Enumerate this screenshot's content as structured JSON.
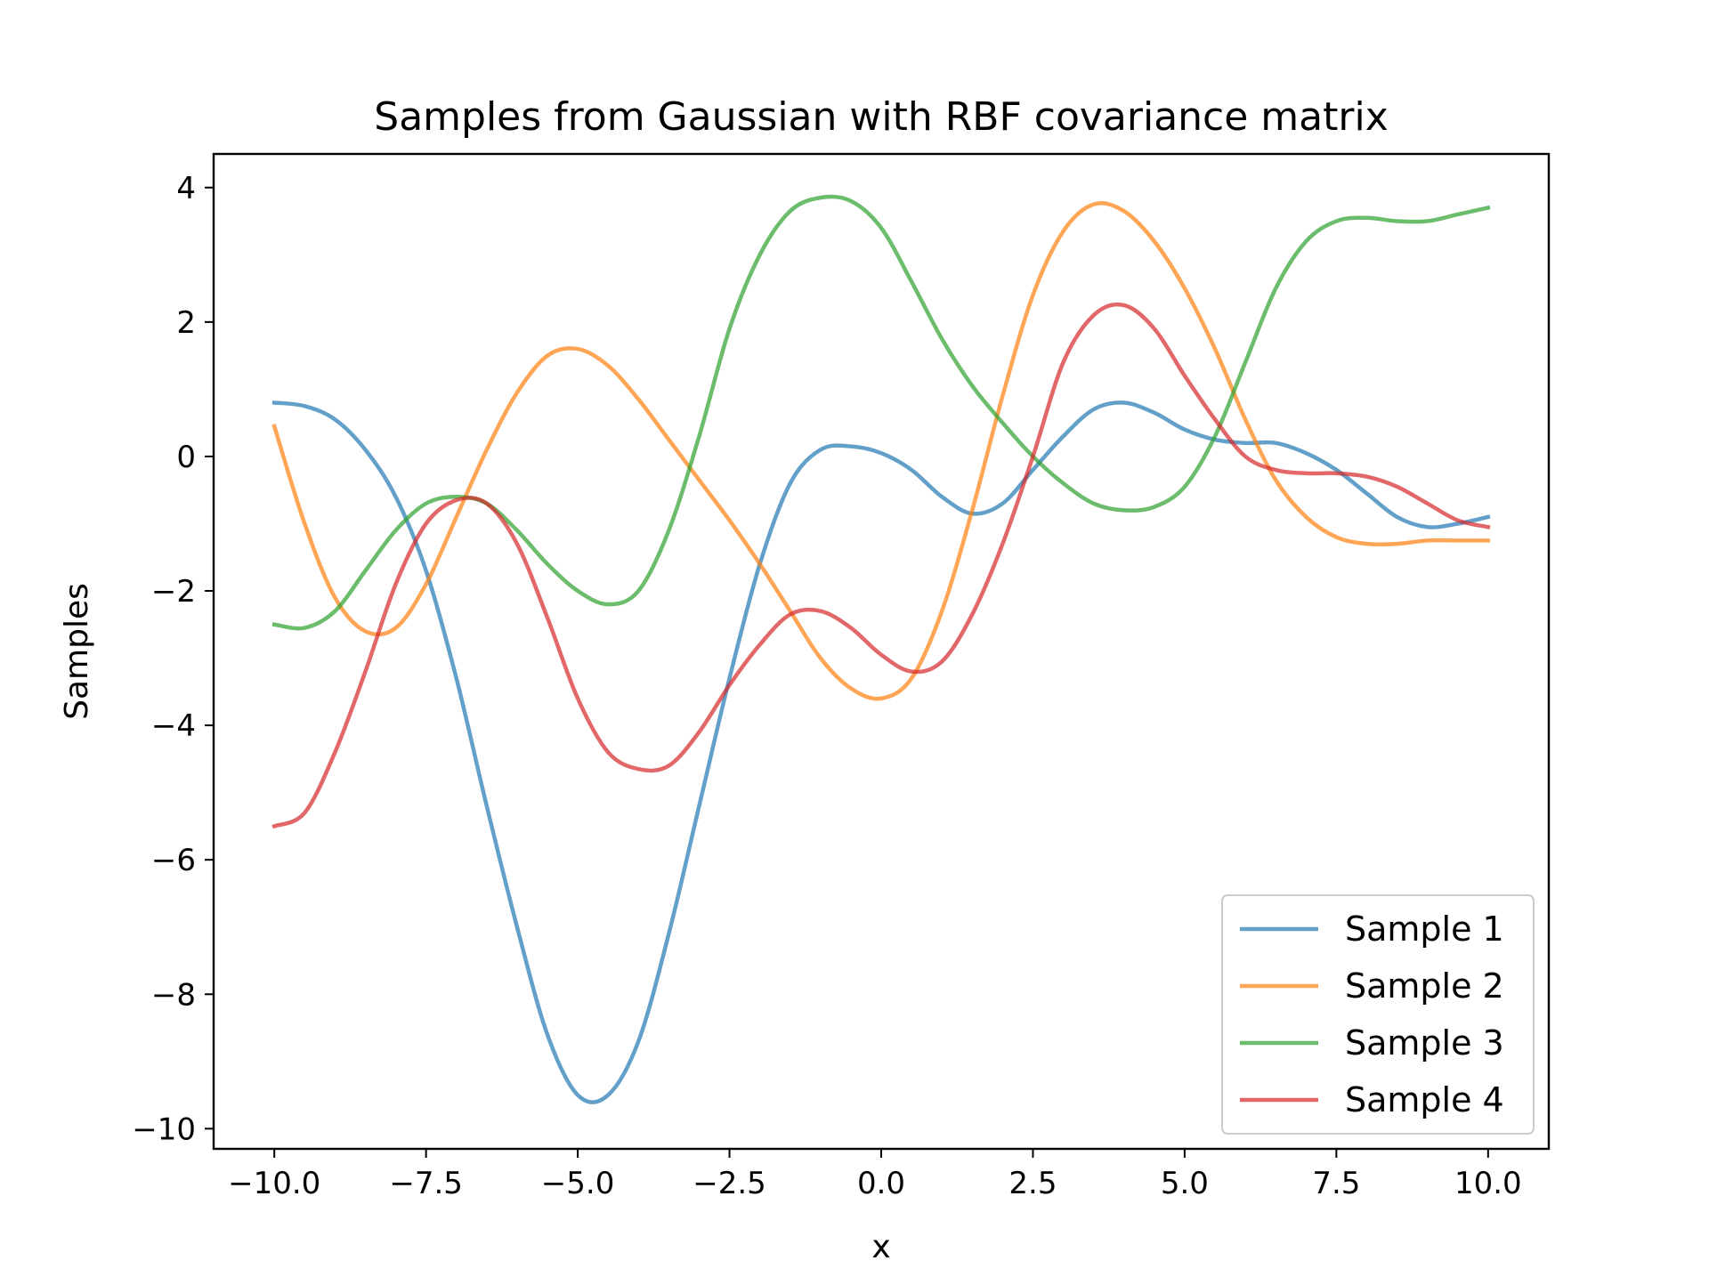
{
  "chart_data": {
    "type": "line",
    "title": "Samples from Gaussian with RBF covariance matrix",
    "xlabel": "x",
    "ylabel": "Samples",
    "xlim": [
      -11.0,
      11.0
    ],
    "ylim": [
      -10.3,
      4.5
    ],
    "xticks": [
      -10.0,
      -7.5,
      -5.0,
      -2.5,
      0.0,
      2.5,
      5.0,
      7.5,
      10.0
    ],
    "xtick_labels": [
      "−10.0",
      "−7.5",
      "−5.0",
      "−2.5",
      "0.0",
      "2.5",
      "5.0",
      "7.5",
      "10.0"
    ],
    "yticks": [
      4,
      2,
      0,
      -2,
      -4,
      -6,
      -8,
      -10
    ],
    "ytick_labels": [
      "4",
      "2",
      "0",
      "−2",
      "−4",
      "−6",
      "−8",
      "−10"
    ],
    "grid": false,
    "legend_position": "lower-right",
    "series": [
      {
        "name": "Sample 1",
        "color": "#1f77b4",
        "x": [
          -10.0,
          -9.5,
          -9.0,
          -8.5,
          -8.0,
          -7.5,
          -7.0,
          -6.5,
          -6.0,
          -5.5,
          -5.0,
          -4.5,
          -4.0,
          -3.5,
          -3.0,
          -2.5,
          -2.0,
          -1.5,
          -1.0,
          -0.5,
          0.0,
          0.5,
          1.0,
          1.5,
          2.0,
          2.5,
          3.0,
          3.5,
          4.0,
          4.5,
          5.0,
          5.5,
          6.0,
          6.5,
          7.0,
          7.5,
          8.0,
          8.5,
          9.0,
          9.5,
          10.0
        ],
        "y": [
          0.8,
          0.75,
          0.55,
          0.1,
          -0.6,
          -1.7,
          -3.3,
          -5.2,
          -7.0,
          -8.6,
          -9.5,
          -9.5,
          -8.7,
          -7.1,
          -5.2,
          -3.3,
          -1.6,
          -0.4,
          0.1,
          0.15,
          0.05,
          -0.2,
          -0.6,
          -0.85,
          -0.7,
          -0.2,
          0.3,
          0.7,
          0.8,
          0.65,
          0.4,
          0.25,
          0.2,
          0.2,
          0.05,
          -0.2,
          -0.55,
          -0.9,
          -1.05,
          -1.0,
          -0.9
        ]
      },
      {
        "name": "Sample 2",
        "color": "#ff7f0e",
        "x": [
          -10.0,
          -9.5,
          -9.0,
          -8.5,
          -8.0,
          -7.5,
          -7.0,
          -6.5,
          -6.0,
          -5.5,
          -5.0,
          -4.5,
          -4.0,
          -3.5,
          -3.0,
          -2.5,
          -2.0,
          -1.5,
          -1.0,
          -0.5,
          0.0,
          0.5,
          1.0,
          1.5,
          2.0,
          2.5,
          3.0,
          3.5,
          4.0,
          4.5,
          5.0,
          5.5,
          6.0,
          6.5,
          7.0,
          7.5,
          8.0,
          8.5,
          9.0,
          9.5,
          10.0
        ],
        "y": [
          0.45,
          -1.0,
          -2.1,
          -2.6,
          -2.55,
          -1.9,
          -0.9,
          0.1,
          0.95,
          1.5,
          1.6,
          1.35,
          0.85,
          0.25,
          -0.35,
          -0.95,
          -1.6,
          -2.3,
          -3.0,
          -3.45,
          -3.6,
          -3.3,
          -2.3,
          -0.8,
          0.9,
          2.4,
          3.35,
          3.75,
          3.65,
          3.2,
          2.5,
          1.6,
          0.55,
          -0.35,
          -0.9,
          -1.2,
          -1.3,
          -1.3,
          -1.25,
          -1.25,
          -1.25
        ]
      },
      {
        "name": "Sample 3",
        "color": "#2ca02c",
        "x": [
          -10.0,
          -9.5,
          -9.0,
          -8.5,
          -8.0,
          -7.5,
          -7.0,
          -6.5,
          -6.0,
          -5.5,
          -5.0,
          -4.5,
          -4.0,
          -3.5,
          -3.0,
          -2.5,
          -2.0,
          -1.5,
          -1.0,
          -0.5,
          0.0,
          0.5,
          1.0,
          1.5,
          2.0,
          2.5,
          3.0,
          3.5,
          4.0,
          4.5,
          5.0,
          5.5,
          6.0,
          6.5,
          7.0,
          7.5,
          8.0,
          8.5,
          9.0,
          9.5,
          10.0
        ],
        "y": [
          -2.5,
          -2.55,
          -2.3,
          -1.7,
          -1.1,
          -0.7,
          -0.6,
          -0.7,
          -1.1,
          -1.6,
          -2.0,
          -2.2,
          -2.0,
          -1.1,
          0.3,
          1.9,
          3.0,
          3.65,
          3.85,
          3.8,
          3.4,
          2.6,
          1.75,
          1.05,
          0.5,
          0.0,
          -0.4,
          -0.7,
          -0.8,
          -0.75,
          -0.45,
          0.3,
          1.4,
          2.5,
          3.2,
          3.5,
          3.55,
          3.5,
          3.5,
          3.6,
          3.7
        ]
      },
      {
        "name": "Sample 4",
        "color": "#d62728",
        "x": [
          -10.0,
          -9.5,
          -9.0,
          -8.5,
          -8.0,
          -7.5,
          -7.0,
          -6.5,
          -6.0,
          -5.5,
          -5.0,
          -4.5,
          -4.0,
          -3.5,
          -3.0,
          -2.5,
          -2.0,
          -1.5,
          -1.0,
          -0.5,
          0.0,
          0.5,
          1.0,
          1.5,
          2.0,
          2.5,
          3.0,
          3.5,
          4.0,
          4.5,
          5.0,
          5.5,
          6.0,
          6.5,
          7.0,
          7.5,
          8.0,
          8.5,
          9.0,
          9.5,
          10.0
        ],
        "y": [
          -5.5,
          -5.3,
          -4.4,
          -3.2,
          -1.9,
          -1.0,
          -0.65,
          -0.7,
          -1.3,
          -2.4,
          -3.6,
          -4.4,
          -4.65,
          -4.6,
          -4.1,
          -3.4,
          -2.8,
          -2.35,
          -2.3,
          -2.55,
          -2.95,
          -3.2,
          -3.05,
          -2.35,
          -1.3,
          0.0,
          1.4,
          2.1,
          2.25,
          1.9,
          1.2,
          0.55,
          0.0,
          -0.2,
          -0.25,
          -0.25,
          -0.3,
          -0.45,
          -0.7,
          -0.95,
          -1.05
        ]
      }
    ]
  }
}
